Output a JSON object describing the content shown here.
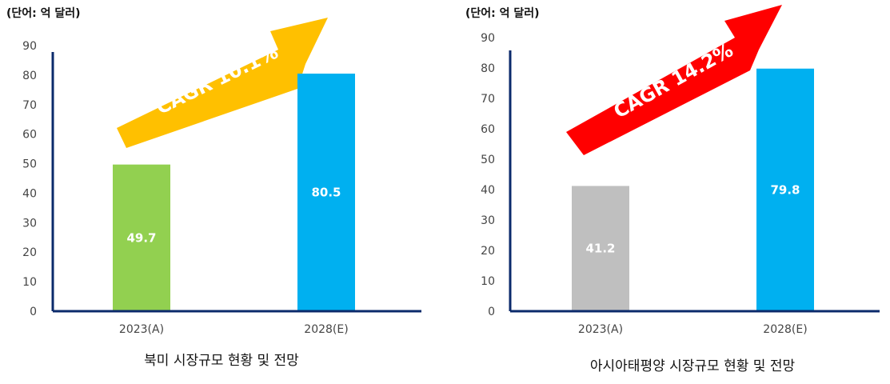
{
  "chart_data": [
    {
      "type": "bar",
      "unit_label": "(단어: 억 달러)",
      "caption": "북미 시장규모 현황 및 전망",
      "categories": [
        "2023(A)",
        "2028(E)"
      ],
      "values": [
        49.7,
        80.5
      ],
      "bar_colors": [
        "#92D050",
        "#00B0F0"
      ],
      "ylim": [
        0,
        90
      ],
      "yticks": [
        0,
        10,
        20,
        30,
        40,
        50,
        60,
        70,
        80,
        90
      ],
      "axis_color": "#0B2A6B",
      "grid": false,
      "annotation": {
        "text": "CAGR 10.1%",
        "arrow_color": "#FFC000"
      }
    },
    {
      "type": "bar",
      "unit_label": "(단어: 억 달러)",
      "caption": "아시아태평양 시장규모 현황 및 전망",
      "categories": [
        "2023(A)",
        "2028(E)"
      ],
      "values": [
        41.2,
        79.8
      ],
      "bar_colors": [
        "#BFBFBF",
        "#00B0F0"
      ],
      "ylim": [
        0,
        90
      ],
      "yticks": [
        0,
        10,
        20,
        30,
        40,
        50,
        60,
        70,
        80,
        90
      ],
      "axis_color": "#0B2A6B",
      "grid": false,
      "annotation": {
        "text": "CAGR 14.2%",
        "arrow_color": "#FF0000"
      }
    }
  ]
}
